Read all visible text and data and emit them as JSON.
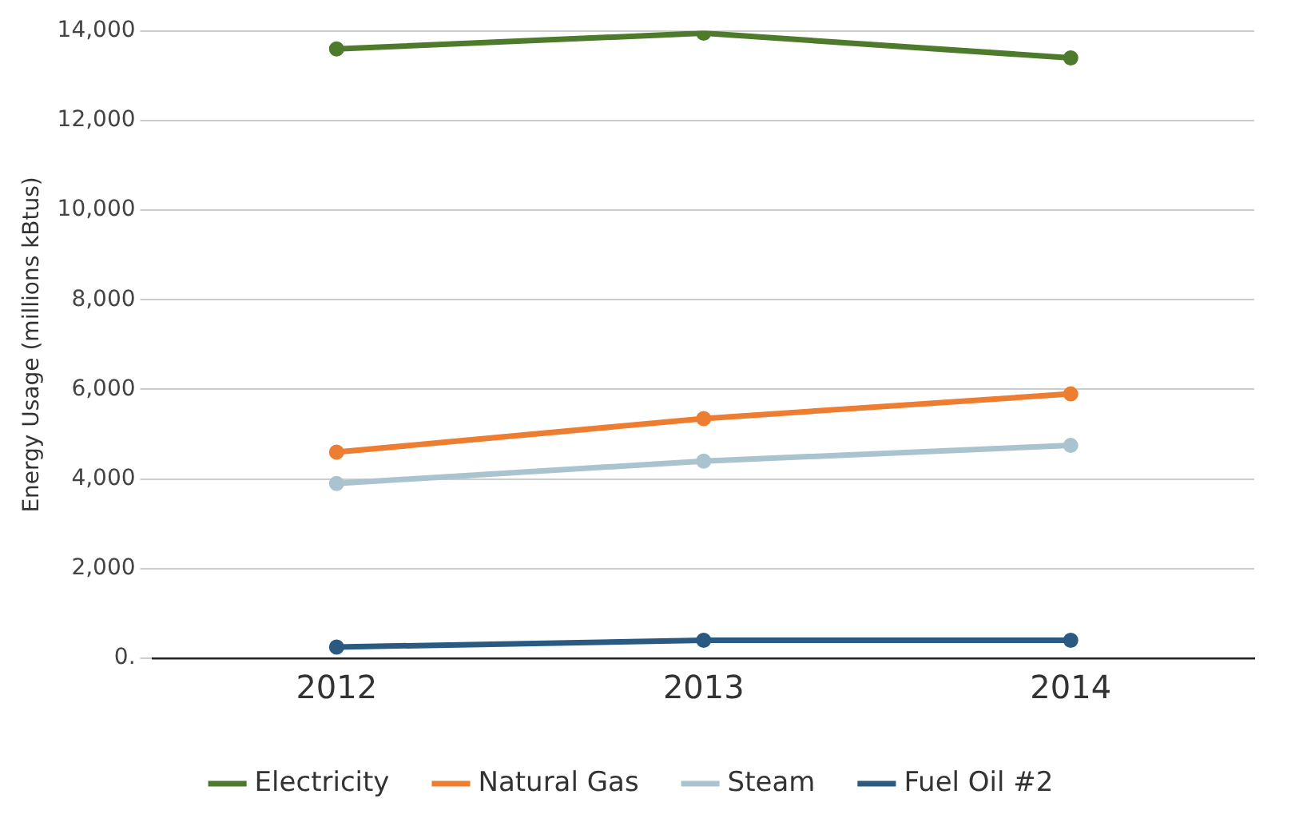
{
  "chart_data": {
    "type": "line",
    "ylabel": "Energy Usage (millions kBtus)",
    "categories": [
      "2012",
      "2013",
      "2014"
    ],
    "series": [
      {
        "name": "Electricity",
        "color": "#4e7a2b",
        "values": [
          13600,
          13950,
          13400
        ]
      },
      {
        "name": "Natural Gas",
        "color": "#ed7d31",
        "values": [
          4600,
          5350,
          5900
        ]
      },
      {
        "name": "Steam",
        "color": "#a9c4cf",
        "values": [
          3900,
          4400,
          4750
        ]
      },
      {
        "name": "Fuel Oil #2",
        "color": "#2a5a82",
        "values": [
          250,
          400,
          400
        ]
      }
    ],
    "ylim": [
      0,
      14000
    ],
    "yticks": [
      {
        "value": 0,
        "label": "0."
      },
      {
        "value": 2000,
        "label": "2,000"
      },
      {
        "value": 4000,
        "label": "4,000"
      },
      {
        "value": 6000,
        "label": "6,000"
      },
      {
        "value": 8000,
        "label": "8,000"
      },
      {
        "value": 10000,
        "label": "10,000"
      },
      {
        "value": 12000,
        "label": "12,000"
      },
      {
        "value": 14000,
        "label": "14,000"
      }
    ],
    "grid": "y",
    "legend": "bottom",
    "marker": "circle",
    "line_style": "solid"
  }
}
